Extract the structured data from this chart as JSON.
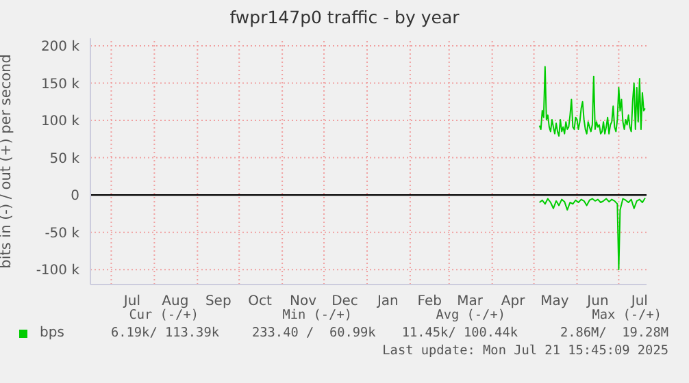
{
  "chart_data": {
    "type": "line",
    "title": "fwpr147p0 traffic - by year",
    "ylabel": "bits in (-) / out (+) per second",
    "xlim": [
      "2024-06-16",
      "2025-07-21"
    ],
    "xticks": [
      {
        "value": "2024-07-01",
        "label": null
      },
      {
        "value": "2024-07-16",
        "label": "Jul"
      },
      {
        "value": "2024-08-01",
        "label": null
      },
      {
        "value": "2024-08-16",
        "label": "Aug"
      },
      {
        "value": "2024-09-01",
        "label": null
      },
      {
        "value": "2024-09-16",
        "label": "Sep"
      },
      {
        "value": "2024-10-01",
        "label": null
      },
      {
        "value": "2024-10-16",
        "label": "Oct"
      },
      {
        "value": "2024-11-01",
        "label": null
      },
      {
        "value": "2024-11-16",
        "label": "Nov"
      },
      {
        "value": "2024-12-01",
        "label": null
      },
      {
        "value": "2024-12-16",
        "label": "Dec"
      },
      {
        "value": "2025-01-01",
        "label": null
      },
      {
        "value": "2025-01-16",
        "label": "Jan"
      },
      {
        "value": "2025-02-01",
        "label": null
      },
      {
        "value": "2025-02-15",
        "label": "Feb"
      },
      {
        "value": "2025-03-01",
        "label": null
      },
      {
        "value": "2025-03-16",
        "label": "Mar"
      },
      {
        "value": "2025-04-01",
        "label": null
      },
      {
        "value": "2025-04-16",
        "label": "Apr"
      },
      {
        "value": "2025-05-01",
        "label": null
      },
      {
        "value": "2025-05-16",
        "label": "May"
      },
      {
        "value": "2025-06-01",
        "label": null
      },
      {
        "value": "2025-06-16",
        "label": "Jun"
      },
      {
        "value": "2025-07-01",
        "label": null
      },
      {
        "value": "2025-07-16",
        "label": "Jul"
      }
    ],
    "ylim": [
      -120000,
      210000
    ],
    "yticks": [
      {
        "value": -100000,
        "label": "-100 k"
      },
      {
        "value": -50000,
        "label": "-50 k"
      },
      0,
      {
        "value": 50000,
        "label": "50 k"
      },
      {
        "value": 100000,
        "label": "100 k"
      },
      {
        "value": 150000,
        "label": "150 k"
      },
      {
        "value": 200000,
        "label": "200 k"
      }
    ],
    "grid": true,
    "legend": "bottom left",
    "ref_lines": [
      {
        "axis": "y",
        "value": 0,
        "color": "#000000"
      }
    ],
    "series": [
      {
        "name": "bps",
        "color": "#00cc00",
        "x": [
          "2025-05-05",
          "2025-05-06",
          "2025-05-07",
          "2025-05-08",
          "2025-05-09",
          "2025-05-10",
          "2025-05-11",
          "2025-05-12",
          "2025-05-13",
          "2025-05-14",
          "2025-05-15",
          "2025-05-16",
          "2025-05-17",
          "2025-05-18",
          "2025-05-19",
          "2025-05-20",
          "2025-05-21",
          "2025-05-22",
          "2025-05-23",
          "2025-05-24",
          "2025-05-25",
          "2025-05-26",
          "2025-05-27",
          "2025-05-28",
          "2025-05-29",
          "2025-05-30",
          "2025-05-31",
          "2025-06-01",
          "2025-06-02",
          "2025-06-03",
          "2025-06-04",
          "2025-06-05",
          "2025-06-06",
          "2025-06-07",
          "2025-06-08",
          "2025-06-09",
          "2025-06-10",
          "2025-06-11",
          "2025-06-12",
          "2025-06-13",
          "2025-06-14",
          "2025-06-15",
          "2025-06-16",
          "2025-06-17",
          "2025-06-18",
          "2025-06-19",
          "2025-06-20",
          "2025-06-21",
          "2025-06-22",
          "2025-06-23",
          "2025-06-24",
          "2025-06-25",
          "2025-06-26",
          "2025-06-27",
          "2025-06-28",
          "2025-06-29",
          "2025-06-30",
          "2025-07-01",
          "2025-07-02",
          "2025-07-03",
          "2025-07-04",
          "2025-07-05",
          "2025-07-06",
          "2025-07-07",
          "2025-07-08",
          "2025-07-09",
          "2025-07-10",
          "2025-07-11",
          "2025-07-12",
          "2025-07-13",
          "2025-07-14",
          "2025-07-15",
          "2025-07-16",
          "2025-07-17",
          "2025-07-18",
          "2025-07-19",
          "2025-07-20"
        ],
        "values": [
          93000,
          88000,
          113000,
          104000,
          172000,
          101000,
          107000,
          91000,
          85000,
          101000,
          91000,
          82000,
          96000,
          85000,
          79000,
          101000,
          85000,
          91000,
          82000,
          98000,
          88000,
          91000,
          107000,
          128000,
          91000,
          88000,
          104000,
          101000,
          88000,
          98000,
          116000,
          125000,
          101000,
          88000,
          82000,
          98000,
          91000,
          85000,
          94000,
          159000,
          88000,
          98000,
          91000,
          94000,
          82000,
          85000,
          98000,
          82000,
          91000,
          104000,
          82000,
          94000,
          98000,
          119000,
          91000,
          85000,
          101000,
          144000,
          113000,
          128000,
          98000,
          88000,
          101000,
          94000,
          107000,
          91000,
          85000,
          125000,
          150000,
          88000,
          144000,
          98000,
          156000,
          88000,
          137000,
          113000,
          116000
        ]
      },
      {
        "color": "#00cc00",
        "x": [
          "2025-05-05",
          "2025-05-07",
          "2025-05-09",
          "2025-05-11",
          "2025-05-13",
          "2025-05-15",
          "2025-05-17",
          "2025-05-19",
          "2025-05-21",
          "2025-05-23",
          "2025-05-25",
          "2025-05-27",
          "2025-05-29",
          "2025-05-31",
          "2025-06-02",
          "2025-06-04",
          "2025-06-06",
          "2025-06-08",
          "2025-06-10",
          "2025-06-12",
          "2025-06-14",
          "2025-06-16",
          "2025-06-18",
          "2025-06-20",
          "2025-06-22",
          "2025-06-24",
          "2025-06-26",
          "2025-06-28",
          "2025-06-30",
          "2025-07-01",
          "2025-07-02",
          "2025-07-04",
          "2025-07-06",
          "2025-07-08",
          "2025-07-10",
          "2025-07-12",
          "2025-07-14",
          "2025-07-16",
          "2025-07-18",
          "2025-07-20"
        ],
        "values": [
          -10000,
          -7000,
          -12000,
          -5000,
          -10000,
          -18000,
          -8000,
          -14000,
          -6000,
          -9000,
          -20000,
          -10000,
          -12000,
          -7000,
          -10000,
          -6000,
          -8000,
          -14000,
          -7000,
          -5000,
          -8000,
          -6000,
          -10000,
          -8000,
          -5000,
          -9000,
          -6000,
          -8000,
          -12000,
          -100000,
          -20000,
          -5000,
          -7000,
          -10000,
          -6000,
          -18000,
          -8000,
          -6000,
          -10000,
          -4000
        ]
      }
    ],
    "annotations": [
      "Cur (-/+)",
      "Min (-/+)",
      "Avg (-/+)",
      "Max (-/+)",
      "6.19k/ 113.39k",
      "233.40 /  60.99k",
      "11.45k/ 100.44k",
      "2.86M/  19.28M",
      "Last update: Mon Jul 21 15:45:09 2025"
    ]
  }
}
